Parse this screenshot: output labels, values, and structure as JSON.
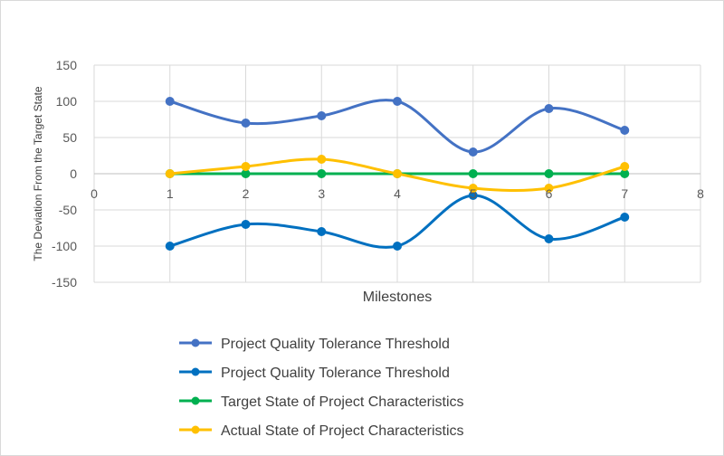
{
  "chart_data": {
    "type": "line",
    "title": "",
    "xlabel": "Milestones",
    "ylabel": "The Deviation From the Target State",
    "xlim": [
      0,
      8
    ],
    "ylim": [
      -150,
      150
    ],
    "x_ticks": [
      0,
      1,
      2,
      3,
      4,
      5,
      6,
      7,
      8
    ],
    "y_ticks": [
      150,
      100,
      50,
      0,
      -50,
      -100,
      -150
    ],
    "grid": true,
    "smooth": true,
    "legend_position": "bottom",
    "x": [
      1,
      2,
      3,
      4,
      5,
      6,
      7
    ],
    "series": [
      {
        "name": "Project Quality Tolerance Threshold",
        "color": "#4472C4",
        "values": [
          100,
          70,
          80,
          100,
          30,
          90,
          60
        ]
      },
      {
        "name": "Project Quality Tolerance Threshold",
        "color": "#0070C0",
        "values": [
          -100,
          -70,
          -80,
          -100,
          -30,
          -90,
          -60
        ]
      },
      {
        "name": "Target State of Project Characteristics",
        "color": "#00B050",
        "values": [
          0,
          0,
          0,
          0,
          0,
          0,
          0
        ]
      },
      {
        "name": "Actual State of Project Characteristics",
        "color": "#FFC000",
        "values": [
          0,
          10,
          20,
          0,
          -20,
          -20,
          10
        ]
      }
    ]
  }
}
